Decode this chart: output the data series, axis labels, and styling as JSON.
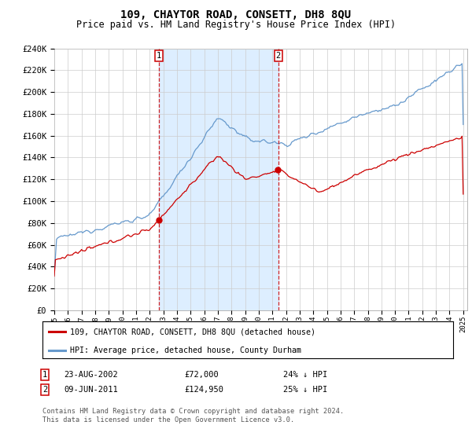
{
  "title": "109, CHAYTOR ROAD, CONSETT, DH8 8QU",
  "subtitle": "Price paid vs. HM Land Registry's House Price Index (HPI)",
  "ylim": [
    0,
    240000
  ],
  "yticks": [
    0,
    20000,
    40000,
    60000,
    80000,
    100000,
    120000,
    140000,
    160000,
    180000,
    200000,
    220000,
    240000
  ],
  "ytick_labels": [
    "£0",
    "£20K",
    "£40K",
    "£60K",
    "£80K",
    "£100K",
    "£120K",
    "£140K",
    "£160K",
    "£180K",
    "£200K",
    "£220K",
    "£240K"
  ],
  "line1_label": "109, CHAYTOR ROAD, CONSETT, DH8 8QU (detached house)",
  "line1_color": "#cc0000",
  "line2_label": "HPI: Average price, detached house, County Durham",
  "line2_color": "#6699cc",
  "shade_color": "#ddeeff",
  "marker1_year": 2002.65,
  "marker2_year": 2011.44,
  "marker1_price": 72000,
  "marker1_date": "23-AUG-2002",
  "marker1_hpi": "24% ↓ HPI",
  "marker2_price": 124950,
  "marker2_date": "09-JUN-2011",
  "marker2_hpi": "25% ↓ HPI",
  "footer": "Contains HM Land Registry data © Crown copyright and database right 2024.\nThis data is licensed under the Open Government Licence v3.0.",
  "background_color": "#ffffff",
  "grid_color": "#cccccc",
  "title_fontsize": 10,
  "subtitle_fontsize": 8.5
}
